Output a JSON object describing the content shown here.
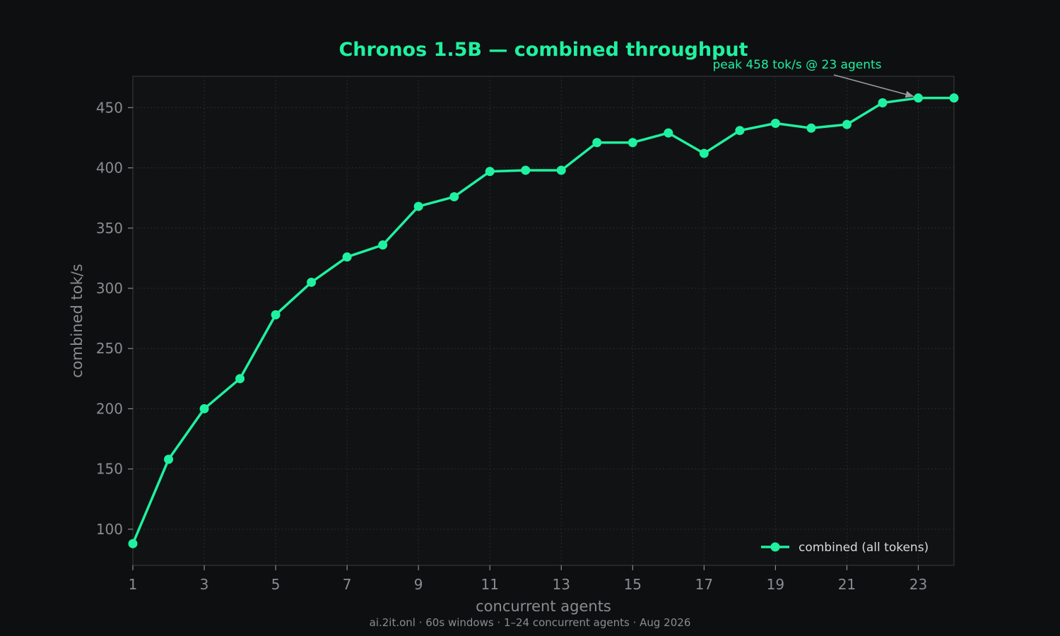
{
  "chart_data": {
    "type": "line",
    "title": "Chronos 1.5B — combined throughput",
    "xlabel": "concurrent agents",
    "ylabel": "combined tok/s",
    "xlim": [
      1,
      24
    ],
    "ylim": [
      70,
      476
    ],
    "xticks": [
      1,
      3,
      5,
      7,
      9,
      11,
      13,
      15,
      17,
      19,
      21,
      23
    ],
    "yticks": [
      100,
      150,
      200,
      250,
      300,
      350,
      400,
      450
    ],
    "grid": true,
    "legend_position": "lower-right",
    "series": [
      {
        "name": "combined (all tokens)",
        "color": "#1ef2a0",
        "x": [
          1,
          2,
          3,
          4,
          5,
          6,
          7,
          8,
          9,
          10,
          11,
          12,
          13,
          14,
          15,
          16,
          17,
          18,
          19,
          20,
          21,
          22,
          23,
          24
        ],
        "y": [
          88,
          158,
          200,
          225,
          278,
          305,
          326,
          336,
          368,
          376,
          397,
          398,
          398,
          421,
          421,
          429,
          412,
          431,
          437,
          433,
          436,
          454,
          458,
          458
        ]
      }
    ],
    "annotation": {
      "text": "peak 458 tok/s @ 23 agents",
      "x": 23,
      "y": 458
    },
    "footer": "ai.2it.onl · 60s windows · 1–24 concurrent agents · Aug 2026"
  }
}
